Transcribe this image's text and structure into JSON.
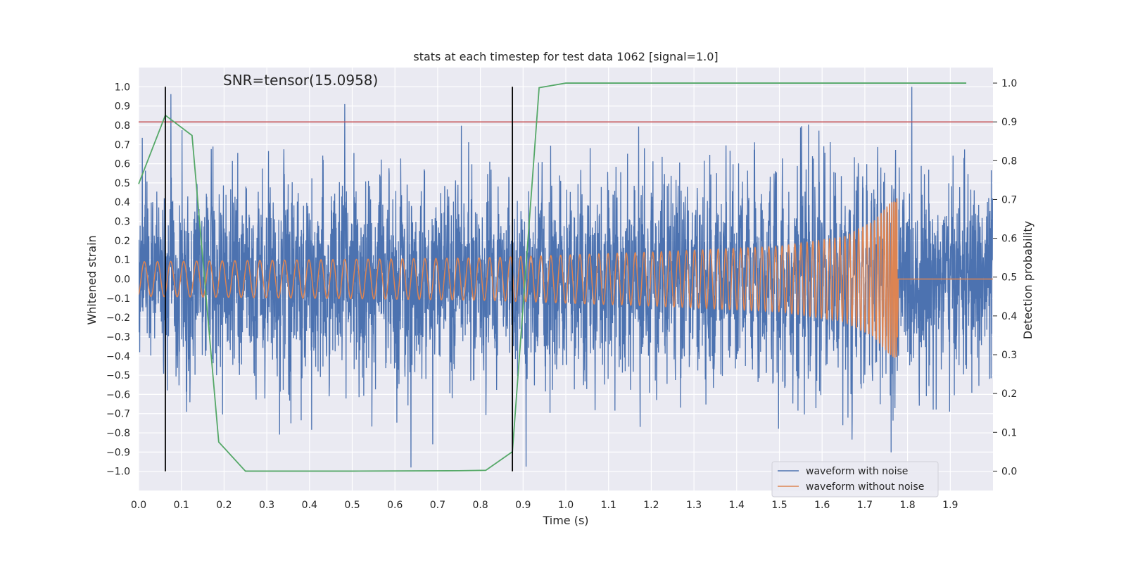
{
  "chart_data": {
    "type": "line",
    "title": "stats at each timestep for test data 1062 [signal=1.0]",
    "annotation": "SNR=tensor(15.0958)",
    "xlabel": "Time (s)",
    "ylabel": "Whitened strain",
    "y2label": "Detection probability",
    "xlim": [
      0.0,
      2.0
    ],
    "ylim": [
      -1.1,
      1.1
    ],
    "y2lim": [
      -0.05,
      1.04
    ],
    "grid": true,
    "x_ticks": [
      0.0,
      0.1,
      0.2,
      0.3,
      0.4,
      0.5,
      0.6,
      0.7,
      0.8,
      0.9,
      1.0,
      1.1,
      1.2,
      1.3,
      1.4,
      1.5,
      1.6,
      1.7,
      1.8,
      1.9
    ],
    "x_tick_labels": [
      "0.0",
      "0.1",
      "0.2",
      "0.3",
      "0.4",
      "0.5",
      "0.6",
      "0.7",
      "0.8",
      "0.9",
      "1.0",
      "1.1",
      "1.2",
      "1.3",
      "1.4",
      "1.5",
      "1.6",
      "1.7",
      "1.8",
      "1.9"
    ],
    "y_ticks": [
      1.0,
      0.9,
      0.8,
      0.7,
      0.6,
      0.5,
      0.4,
      0.3,
      0.2,
      0.1,
      0.0,
      -0.1,
      -0.2,
      -0.3,
      -0.4,
      -0.5,
      -0.6,
      -0.7,
      -0.8,
      -0.9,
      -1.0
    ],
    "y_tick_labels": [
      "1.0",
      "0.9",
      "0.8",
      "0.7",
      "0.6",
      "0.5",
      "0.4",
      "0.3",
      "0.2",
      "0.1",
      "0.0",
      "−0.1",
      "−0.2",
      "−0.3",
      "−0.4",
      "−0.5",
      "−0.6",
      "−0.7",
      "−0.8",
      "−0.9",
      "−1.0"
    ],
    "y2_ticks": [
      1.0,
      0.9,
      0.8,
      0.7,
      0.6,
      0.5,
      0.4,
      0.3,
      0.2,
      0.1,
      0.0
    ],
    "y2_tick_labels": [
      "1.0",
      "0.9",
      "0.8",
      "0.7",
      "0.6",
      "0.5",
      "0.4",
      "0.3",
      "0.2",
      "0.1",
      "0.0"
    ],
    "series": [
      {
        "name": "waveform with noise",
        "color": "#4c72b0",
        "axis": "left",
        "noise_amplitude_typical": 0.3,
        "noise_peak_max": 1.0,
        "noise_peak_min": -0.98
      },
      {
        "name": "waveform without noise",
        "color": "#dd8452",
        "axis": "left",
        "envelope": {
          "t": [
            0.0,
            0.8,
            1.2,
            1.5,
            1.65,
            1.72,
            1.76,
            1.775,
            1.78,
            2.0
          ],
          "amp": [
            0.09,
            0.11,
            0.14,
            0.17,
            0.22,
            0.3,
            0.4,
            0.42,
            0.0,
            0.0
          ]
        },
        "merger_time": 1.778
      },
      {
        "name": "detection probability",
        "color": "#55a868",
        "axis": "right",
        "x": [
          0.0,
          0.0625,
          0.125,
          0.1875,
          0.25,
          0.3125,
          0.5,
          0.75,
          0.8125,
          0.875,
          0.9375,
          1.0,
          1.9375
        ],
        "y": [
          0.74,
          0.917,
          0.865,
          0.075,
          0.0,
          0.0,
          0.0,
          0.001,
          0.002,
          0.05,
          0.988,
          1.0,
          1.0
        ]
      }
    ],
    "threshold": {
      "value": 0.9,
      "axis": "right",
      "color": "#c44e52"
    },
    "vertical_markers": {
      "x": [
        0.0625,
        0.875
      ],
      "y_range": [
        -1.0,
        1.0
      ],
      "color": "#000000"
    },
    "legend": {
      "placement": "lower-right",
      "entries": [
        {
          "label": "waveform with noise",
          "color": "#4c72b0"
        },
        {
          "label": "waveform without noise",
          "color": "#dd8452"
        }
      ]
    },
    "colors": {
      "background": "#eaeaf2",
      "grid": "#ffffff",
      "text": "#262626"
    }
  }
}
